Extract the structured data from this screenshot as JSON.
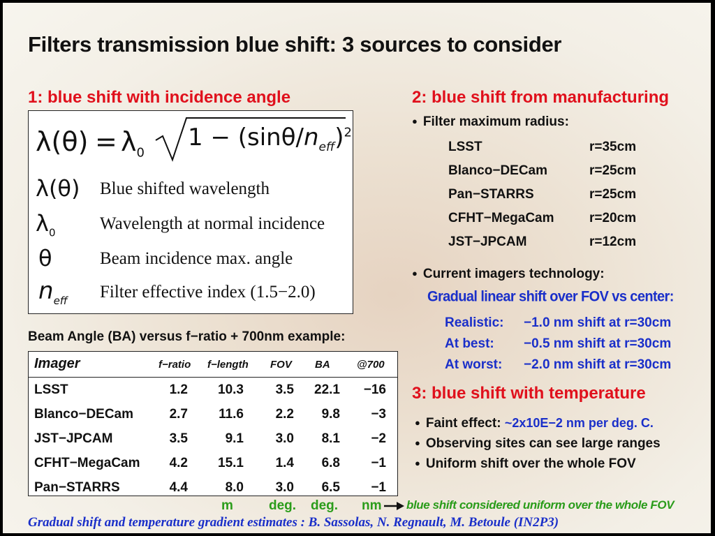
{
  "title": "Filters transmission blue shift: 3 sources to consider",
  "section1": {
    "heading": "1: blue shift with incidence angle",
    "formula": {
      "lhs": "λ(θ)",
      "eq": "=",
      "lambda0": "λ",
      "lambda0_sub": "0",
      "inside": "1 − (sinθ/",
      "n": "n",
      "n_sub": "eff",
      "close": ")",
      "power": "2"
    },
    "definitions": [
      {
        "symbol": "λ(θ)",
        "text": "Blue shifted wavelength"
      },
      {
        "symbol": "λ",
        "sub": "0",
        "text": "Wavelength at normal incidence"
      },
      {
        "symbol": "θ",
        "text": "Beam incidence max. angle"
      },
      {
        "symbol": "n",
        "sub": "eff",
        "text": "Filter effective index (1.5−2.0)"
      }
    ]
  },
  "table": {
    "caption": "Beam Angle (BA) versus f−ratio + 700nm example:",
    "headers": [
      "Imager",
      "f−ratio",
      "f−length",
      "FOV",
      "BA",
      "@700"
    ],
    "rows": [
      [
        "LSST",
        "1.2",
        "10.3",
        "3.5",
        "22.1",
        "−16"
      ],
      [
        "Blanco−DECam",
        "2.7",
        "11.6",
        "2.2",
        "9.8",
        "−3"
      ],
      [
        "JST−JPCAM",
        "3.5",
        "9.1",
        "3.0",
        "8.1",
        "−2"
      ],
      [
        "CFHT−MegaCam",
        "4.2",
        "15.1",
        "1.4",
        "6.8",
        "−1"
      ],
      [
        "Pan−STARRS",
        "4.4",
        "8.0",
        "3.0",
        "6.5",
        "−1"
      ]
    ],
    "units": {
      "f_length": "m",
      "fov": "deg.",
      "ba": "deg.",
      "at700": "nm"
    },
    "uniform_note": "blue shift considered uniform over the whole FOV"
  },
  "section2": {
    "heading": "2: blue shift from manufacturing",
    "bullet1": "Filter maximum radius:",
    "radii": [
      {
        "name": "LSST",
        "value": "r=35cm"
      },
      {
        "name": "Blanco−DECam",
        "value": "r=25cm"
      },
      {
        "name": "Pan−STARRS",
        "value": "r=25cm"
      },
      {
        "name": "CFHT−MegaCam",
        "value": "r=20cm"
      },
      {
        "name": "JST−JPCAM",
        "value": "r=12cm"
      }
    ],
    "bullet2": "Current imagers technology:",
    "gradual": "Gradual linear shift over FOV vs center:",
    "cases": [
      {
        "label": "Realistic:",
        "value": "−1.0 nm shift at r=30cm"
      },
      {
        "label": "At best:",
        "value": "−0.5 nm shift at r=30cm"
      },
      {
        "label": "At worst:",
        "value": "−2.0 nm shift at r=30cm"
      }
    ]
  },
  "section3": {
    "heading": "3: blue shift with temperature",
    "faint_label": "Faint effect:",
    "faint_value": "~2x10E−2 nm per deg. C.",
    "bullet2": "Observing sites can see large ranges",
    "bullet3": "Uniform shift over the whole FOV"
  },
  "footer": "Gradual shift and temperature gradient estimates : B. Sassolas, N. Regnault, M. Betoule (IN2P3)",
  "colors": {
    "red": "#e0101c",
    "blue": "#1a2fc9",
    "green": "#2a9c1a",
    "border": "#000000"
  }
}
